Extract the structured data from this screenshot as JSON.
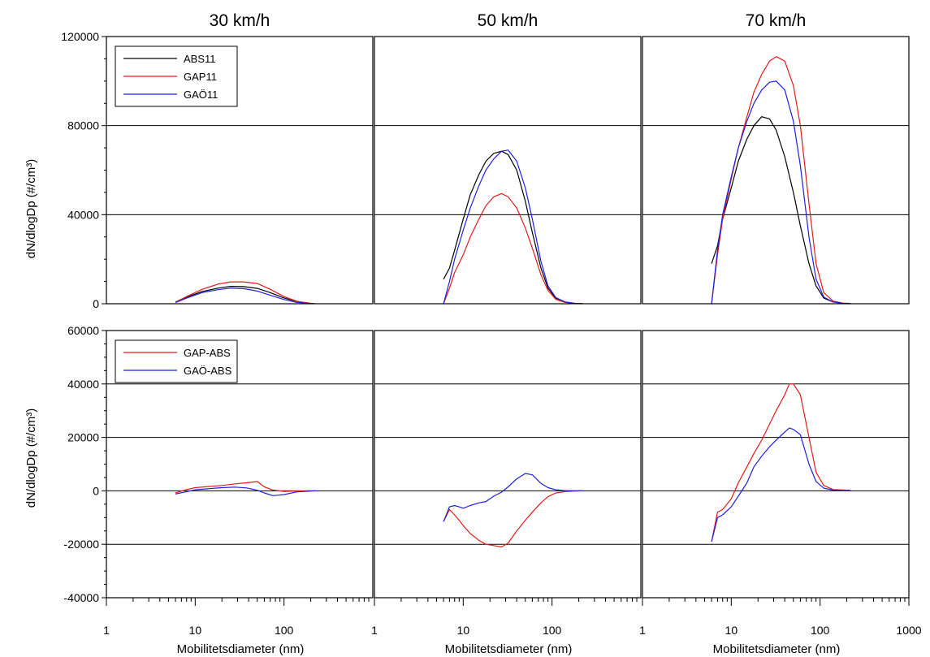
{
  "figure": {
    "xlabel": "Mobilitetsdiameter (nm)",
    "ylabel": "dN/dlogDp (#/cm³)"
  },
  "chart_data": [
    {
      "type": "line",
      "row": "top",
      "title": "30 km/h",
      "xscale": "log",
      "xlim": [
        1,
        1000
      ],
      "ylim": [
        0,
        120000
      ],
      "yticks": [
        0,
        40000,
        80000,
        120000
      ],
      "grid": "major y",
      "legend": "top-left",
      "series": [
        {
          "name": "ABS11",
          "color": "#000000",
          "x": [
            6,
            8,
            12,
            18,
            25,
            35,
            50,
            70,
            100,
            140,
            200,
            220
          ],
          "y": [
            800,
            3000,
            5500,
            7000,
            7800,
            7700,
            6900,
            5000,
            2600,
            1000,
            150,
            100
          ]
        },
        {
          "name": "GAP11",
          "color": "#e31a1c",
          "x": [
            6,
            8,
            12,
            18,
            25,
            35,
            50,
            70,
            100,
            140,
            200,
            220
          ],
          "y": [
            700,
            3200,
            6500,
            8800,
            9800,
            9800,
            9100,
            6500,
            3200,
            1100,
            150,
            100
          ]
        },
        {
          "name": "GAÖ11",
          "color": "#1f1fe0",
          "x": [
            6,
            8,
            12,
            18,
            25,
            35,
            50,
            70,
            100,
            140,
            200,
            220
          ],
          "y": [
            500,
            2500,
            5000,
            6300,
            7000,
            6800,
            5700,
            3800,
            1900,
            600,
            100,
            80
          ]
        }
      ]
    },
    {
      "type": "line",
      "row": "top",
      "title": "50 km/h",
      "xscale": "log",
      "xlim": [
        1,
        1000
      ],
      "ylim": [
        0,
        120000
      ],
      "yticks": [
        0,
        40000,
        80000,
        120000
      ],
      "grid": "major y",
      "series": [
        {
          "name": "ABS11",
          "color": "#000000",
          "x": [
            6,
            7,
            8,
            10,
            12,
            15,
            18,
            22,
            27,
            32,
            40,
            50,
            60,
            75,
            90,
            110,
            140,
            180,
            220
          ],
          "y": [
            11000,
            16000,
            24000,
            38000,
            49000,
            58000,
            64000,
            67500,
            68500,
            67000,
            60000,
            46000,
            32000,
            16000,
            7000,
            2500,
            800,
            200,
            100
          ]
        },
        {
          "name": "GAP11",
          "color": "#e31a1c",
          "x": [
            6,
            7,
            8,
            10,
            12,
            15,
            18,
            22,
            27,
            32,
            40,
            50,
            60,
            75,
            90,
            110,
            140,
            180,
            220
          ],
          "y": [
            0,
            7000,
            14000,
            22000,
            30000,
            38000,
            44000,
            48000,
            49500,
            48000,
            43000,
            34000,
            25000,
            13000,
            6000,
            2000,
            600,
            150,
            80
          ]
        },
        {
          "name": "GAÖ11",
          "color": "#1f1fe0",
          "x": [
            6,
            7,
            8,
            10,
            12,
            15,
            18,
            22,
            27,
            32,
            40,
            50,
            60,
            75,
            90,
            110,
            140,
            180,
            220
          ],
          "y": [
            0,
            10000,
            20000,
            33000,
            43000,
            53000,
            60000,
            65000,
            68500,
            69000,
            64000,
            52000,
            38000,
            19000,
            8000,
            2800,
            800,
            200,
            100
          ]
        }
      ]
    },
    {
      "type": "line",
      "row": "top",
      "title": "70 km/h",
      "xscale": "log",
      "xlim": [
        1,
        1000
      ],
      "ylim": [
        0,
        120000
      ],
      "yticks": [
        0,
        40000,
        80000,
        120000
      ],
      "grid": "major y",
      "series": [
        {
          "name": "ABS11",
          "color": "#000000",
          "x": [
            6,
            7,
            8,
            10,
            12,
            15,
            18,
            22,
            27,
            32,
            40,
            50,
            60,
            75,
            90,
            110,
            140,
            180,
            220
          ],
          "y": [
            18000,
            26000,
            38000,
            52000,
            64000,
            74000,
            80000,
            84000,
            83000,
            78000,
            66000,
            50000,
            35000,
            18000,
            8000,
            2500,
            800,
            200,
            100
          ]
        },
        {
          "name": "GAP11",
          "color": "#e31a1c",
          "x": [
            6,
            7,
            8,
            10,
            12,
            15,
            18,
            22,
            27,
            32,
            40,
            50,
            60,
            75,
            90,
            110,
            140,
            180,
            220
          ],
          "y": [
            0,
            22000,
            38000,
            56000,
            70000,
            84000,
            95000,
            103000,
            109000,
            111000,
            109000,
            98000,
            80000,
            45000,
            18000,
            5000,
            1200,
            300,
            150
          ]
        },
        {
          "name": "GAÖ11",
          "color": "#1f1fe0",
          "x": [
            6,
            7,
            8,
            10,
            12,
            15,
            18,
            22,
            27,
            32,
            40,
            50,
            60,
            75,
            90,
            110,
            140,
            180,
            220
          ],
          "y": [
            0,
            24000,
            40000,
            57000,
            70000,
            82000,
            90000,
            96000,
            99500,
            100000,
            96000,
            82000,
            62000,
            30000,
            11000,
            3000,
            800,
            200,
            100
          ]
        }
      ]
    },
    {
      "type": "line",
      "row": "bottom",
      "xscale": "log",
      "xlim": [
        1,
        1000
      ],
      "ylim": [
        -40000,
        60000
      ],
      "yticks": [
        -40000,
        -20000,
        0,
        20000,
        40000,
        60000
      ],
      "grid": "major y",
      "legend": "top-left",
      "series": [
        {
          "name": "GAP-ABS",
          "color": "#e31a1c",
          "x": [
            6,
            8,
            10,
            14,
            20,
            28,
            38,
            50,
            60,
            75,
            100,
            140,
            200,
            230
          ],
          "y": [
            -800,
            500,
            1200,
            1600,
            2000,
            2600,
            3000,
            3500,
            1500,
            300,
            -200,
            -100,
            0,
            0
          ]
        },
        {
          "name": "GAÖ-ABS",
          "color": "#1f1fe0",
          "x": [
            6,
            8,
            10,
            14,
            20,
            28,
            38,
            50,
            60,
            75,
            100,
            140,
            200,
            230
          ],
          "y": [
            -1200,
            -300,
            400,
            800,
            1200,
            1400,
            1100,
            200,
            -800,
            -1800,
            -1400,
            -400,
            -100,
            0
          ]
        }
      ]
    },
    {
      "type": "line",
      "row": "bottom",
      "xscale": "log",
      "xlim": [
        1,
        1000
      ],
      "ylim": [
        -40000,
        60000
      ],
      "yticks": [
        -40000,
        -20000,
        0,
        20000,
        40000,
        60000
      ],
      "grid": "major y",
      "series": [
        {
          "name": "GAP-ABS",
          "color": "#e31a1c",
          "x": [
            6,
            7,
            8,
            9,
            10,
            12,
            15,
            18,
            22,
            27,
            32,
            40,
            50,
            60,
            75,
            90,
            110,
            140,
            180,
            220
          ],
          "y": [
            -11500,
            -7000,
            -9000,
            -11000,
            -13000,
            -16000,
            -18500,
            -20000,
            -20500,
            -21000,
            -19500,
            -15000,
            -11000,
            -8000,
            -4500,
            -2200,
            -800,
            -300,
            -100,
            0
          ]
        },
        {
          "name": "GAÖ-ABS",
          "color": "#1f1fe0",
          "x": [
            6,
            7,
            8,
            9,
            10,
            12,
            15,
            18,
            22,
            27,
            32,
            40,
            50,
            60,
            75,
            90,
            110,
            140,
            180,
            220
          ],
          "y": [
            -11500,
            -6000,
            -5500,
            -6000,
            -6500,
            -5500,
            -4500,
            -4000,
            -2000,
            -500,
            1500,
            4500,
            6500,
            6000,
            2800,
            1200,
            400,
            100,
            0,
            0
          ]
        }
      ]
    },
    {
      "type": "line",
      "row": "bottom",
      "xscale": "log",
      "xlim": [
        1,
        1000
      ],
      "ylim": [
        -40000,
        60000
      ],
      "yticks": [
        -40000,
        -20000,
        0,
        20000,
        40000,
        60000
      ],
      "grid": "major y",
      "series": [
        {
          "name": "GAP-ABS",
          "color": "#e31a1c",
          "x": [
            6,
            7,
            8,
            10,
            12,
            15,
            18,
            22,
            27,
            32,
            40,
            45,
            50,
            60,
            75,
            90,
            110,
            140,
            180,
            220
          ],
          "y": [
            -19000,
            -8000,
            -7000,
            -3000,
            3000,
            9000,
            14000,
            19000,
            25000,
            30000,
            36000,
            40000,
            40000,
            36000,
            20000,
            7000,
            2000,
            500,
            300,
            200
          ]
        },
        {
          "name": "GAÖ-ABS",
          "color": "#1f1fe0",
          "x": [
            6,
            7,
            8,
            10,
            12,
            15,
            18,
            22,
            27,
            32,
            40,
            45,
            50,
            60,
            75,
            90,
            110,
            140,
            180,
            220
          ],
          "y": [
            -19000,
            -10000,
            -9000,
            -6000,
            -2000,
            3000,
            9000,
            13000,
            16500,
            19000,
            22000,
            23500,
            23000,
            21000,
            10000,
            3500,
            1000,
            300,
            150,
            100
          ]
        }
      ]
    }
  ]
}
